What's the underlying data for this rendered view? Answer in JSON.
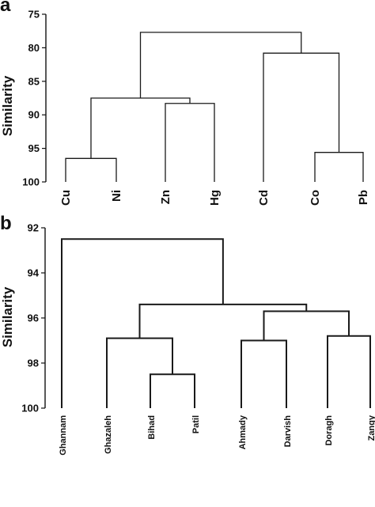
{
  "chart_data": [
    {
      "panel": "a",
      "type": "dendrogram",
      "ylabel": "Similarity",
      "ylim": [
        75,
        100
      ],
      "yticks": [
        "75",
        "80",
        "85",
        "90",
        "95",
        "100"
      ],
      "leaves": [
        "Cu",
        "Ni",
        "Zn",
        "Hg",
        "Cd",
        "Co",
        "Pb"
      ],
      "merges": [
        {
          "left": "Cu",
          "right": "Ni",
          "similarity": 96.5
        },
        {
          "left": "Zn",
          "right": "Hg",
          "similarity": 88.3
        },
        {
          "left": "Co",
          "right": "Pb",
          "similarity": 95.6
        },
        {
          "left": "Cu+Ni",
          "right": "Zn+Hg",
          "similarity": 87.5
        },
        {
          "left": "Cd",
          "right": "Co+Pb",
          "similarity": 80.8
        },
        {
          "left": "Cu+Ni+Zn+Hg",
          "right": "Cd+Co+Pb",
          "similarity": 77.7
        }
      ]
    },
    {
      "panel": "b",
      "type": "dendrogram",
      "ylabel": "Similarity",
      "ylim": [
        92,
        100
      ],
      "yticks": [
        "92",
        "94",
        "96",
        "98",
        "100"
      ],
      "leaves": [
        "Ghannam",
        "Ghazaleh",
        "Bihad",
        "Patil",
        "Ahmady",
        "Darvish",
        "Doragh",
        "Zangy"
      ],
      "merges": [
        {
          "left": "Bihad",
          "right": "Patil",
          "similarity": 98.5
        },
        {
          "left": "Ghazaleh",
          "right": "Bihad+Patil",
          "similarity": 96.9
        },
        {
          "left": "Ahmady",
          "right": "Darvish",
          "similarity": 97.0
        },
        {
          "left": "Doragh",
          "right": "Zangy",
          "similarity": 96.8
        },
        {
          "left": "Ahmady+Darvish",
          "right": "Doragh+Zangy",
          "similarity": 95.7
        },
        {
          "left": "Ghazaleh+Bihad+Patil",
          "right": "Ahmady+Darvish+Doragh+Zangy",
          "similarity": 95.4
        },
        {
          "left": "Ghannam",
          "right": "rest",
          "similarity": 92.5
        }
      ]
    }
  ]
}
